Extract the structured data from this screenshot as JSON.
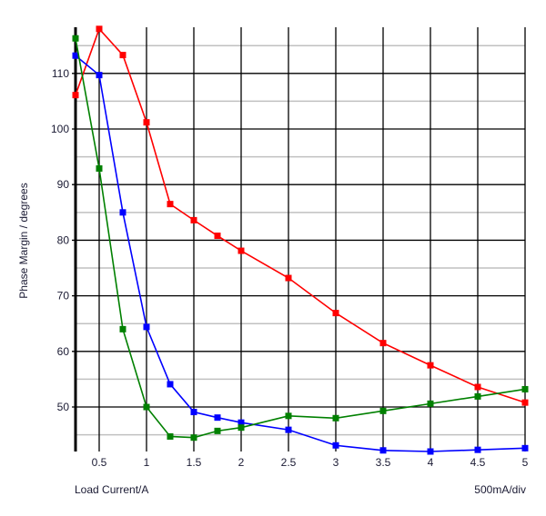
{
  "chart_data": {
    "type": "line",
    "title": "",
    "xlabel": "Load Current/A",
    "ylabel": "Phase Margin / degrees",
    "scale_note": "500mA/div",
    "xlim": [
      0.25,
      5
    ],
    "ylim": [
      42,
      118.3
    ],
    "x_ticks": [
      0.5,
      1,
      1.5,
      2,
      2.5,
      3,
      3.5,
      4,
      4.5,
      5
    ],
    "x_tick_labels": [
      "0.5",
      "1",
      "1.5",
      "2",
      "2.5",
      "3",
      "3.5",
      "4",
      "4.5",
      "5"
    ],
    "y_ticks": [
      50,
      60,
      70,
      80,
      90,
      100,
      110
    ],
    "y_tick_labels": [
      "50",
      "60",
      "70",
      "80",
      "90",
      "100",
      "110"
    ],
    "y_minor_ticks": [
      45,
      55,
      65,
      75,
      85,
      95,
      105,
      115
    ],
    "grid": true,
    "x": [
      0.25,
      0.5,
      0.75,
      1,
      1.25,
      1.5,
      1.75,
      2,
      2.5,
      3,
      3.5,
      4,
      4.5,
      5
    ],
    "series": [
      {
        "name": "red",
        "color": "#ff0000",
        "values": [
          106.1,
          118.0,
          113.3,
          101.2,
          86.5,
          83.6,
          80.8,
          78.1,
          73.2,
          66.9,
          61.5,
          57.5,
          53.6,
          50.8
        ]
      },
      {
        "name": "blue",
        "color": "#0000ff",
        "values": [
          113.2,
          109.7,
          85.0,
          64.4,
          54.1,
          49.1,
          48.1,
          47.2,
          45.9,
          43.1,
          42.2,
          42.0,
          42.3,
          42.6
        ]
      },
      {
        "name": "green",
        "color": "#008000",
        "values": [
          116.3,
          92.9,
          64.0,
          50.0,
          44.7,
          44.5,
          45.7,
          46.3,
          48.4,
          48.0,
          49.3,
          50.6,
          51.9,
          53.2
        ]
      }
    ]
  }
}
